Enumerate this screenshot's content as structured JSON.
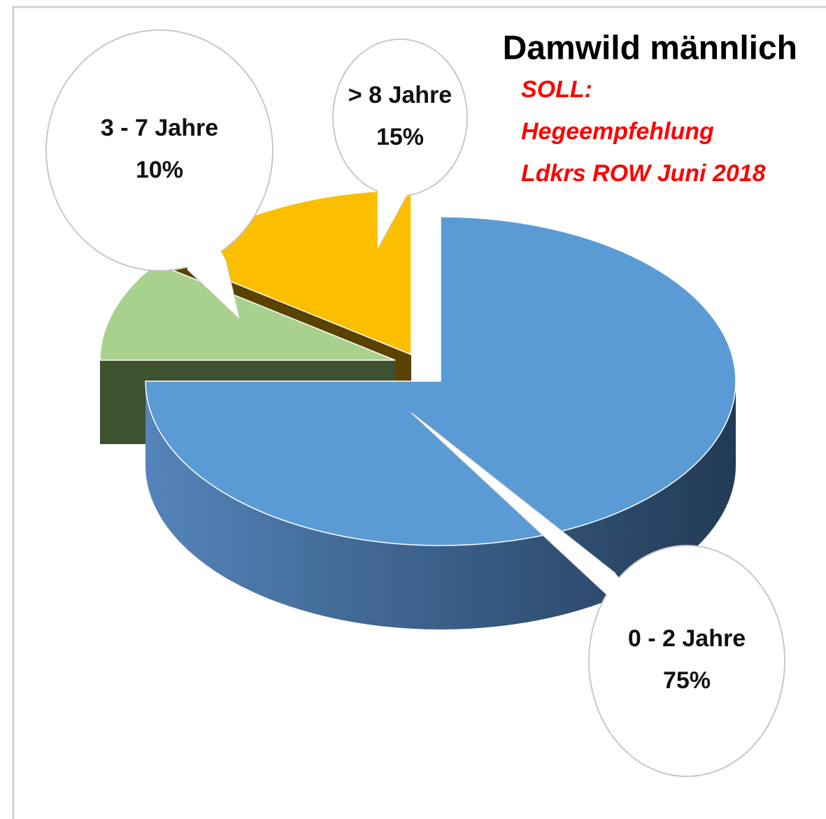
{
  "chart_data": {
    "type": "pie3d",
    "title": "Damwild männlich",
    "subtitle": [
      "SOLL:",
      "Hegeempfehlung",
      "Ldkrs ROW Juni 2018"
    ],
    "categories": [
      "0 - 2 Jahre",
      "3 - 7 Jahre",
      "> 8 Jahre"
    ],
    "values": [
      75,
      10,
      15
    ],
    "value_labels": [
      "75%",
      "10%",
      "15%"
    ],
    "colors": [
      "#5b9bd5",
      "#a9d18e",
      "#fbbf00"
    ]
  }
}
